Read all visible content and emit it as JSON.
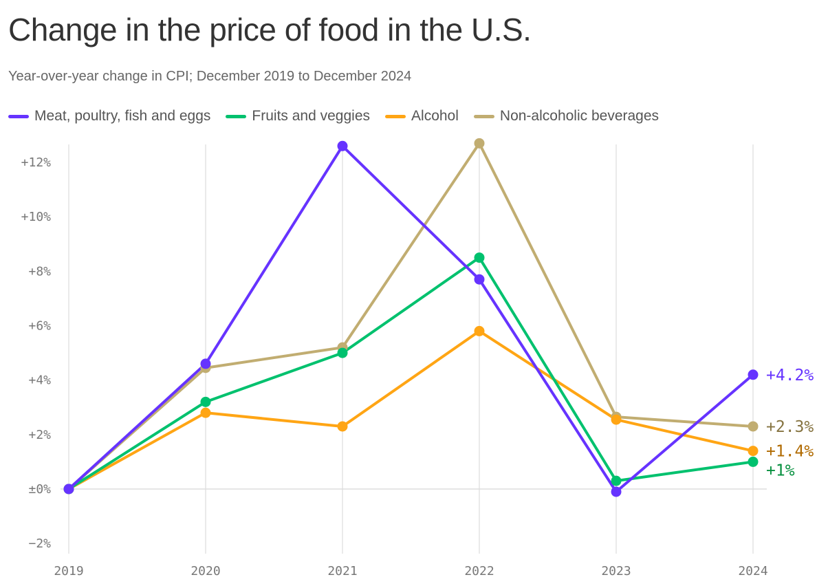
{
  "chart_data": {
    "type": "line",
    "title": "Change in the price of food in the U.S.",
    "subtitle": "Year-over-year change in CPI; December 2019 to December 2024",
    "x": [
      "2019",
      "2020",
      "2021",
      "2022",
      "2023",
      "2024"
    ],
    "ylim": [
      -2,
      12.6
    ],
    "yticks": [
      -2,
      0,
      2,
      4,
      6,
      8,
      10,
      12
    ],
    "ytick_labels": [
      "−2%",
      "±0%",
      "+2%",
      "+4%",
      "+6%",
      "+8%",
      "+10%",
      "+12%"
    ],
    "grid": "vertical",
    "legend": "top",
    "series": [
      {
        "name": "Meat, poultry, fish and eggs",
        "color": "#6633ff",
        "label_color": "#6633ff",
        "values": [
          0,
          4.6,
          12.6,
          7.7,
          -0.1,
          4.2
        ],
        "end_label": "+4.2%"
      },
      {
        "name": "Fruits and veggies",
        "color": "#00c16e",
        "label_color": "#07903f",
        "values": [
          0,
          3.2,
          5.0,
          8.5,
          0.3,
          1.0
        ],
        "end_label": "+1%"
      },
      {
        "name": "Alcohol",
        "color": "#ffa514",
        "label_color": "#b06a00",
        "values": [
          0,
          2.8,
          2.3,
          5.8,
          2.55,
          1.4
        ],
        "end_label": "+1.4%"
      },
      {
        "name": "Non-alcoholic beverages",
        "color": "#c1ad71",
        "label_color": "#857340",
        "values": [
          0,
          4.45,
          5.2,
          12.7,
          2.65,
          2.3
        ],
        "end_label": "+2.3%"
      }
    ]
  }
}
